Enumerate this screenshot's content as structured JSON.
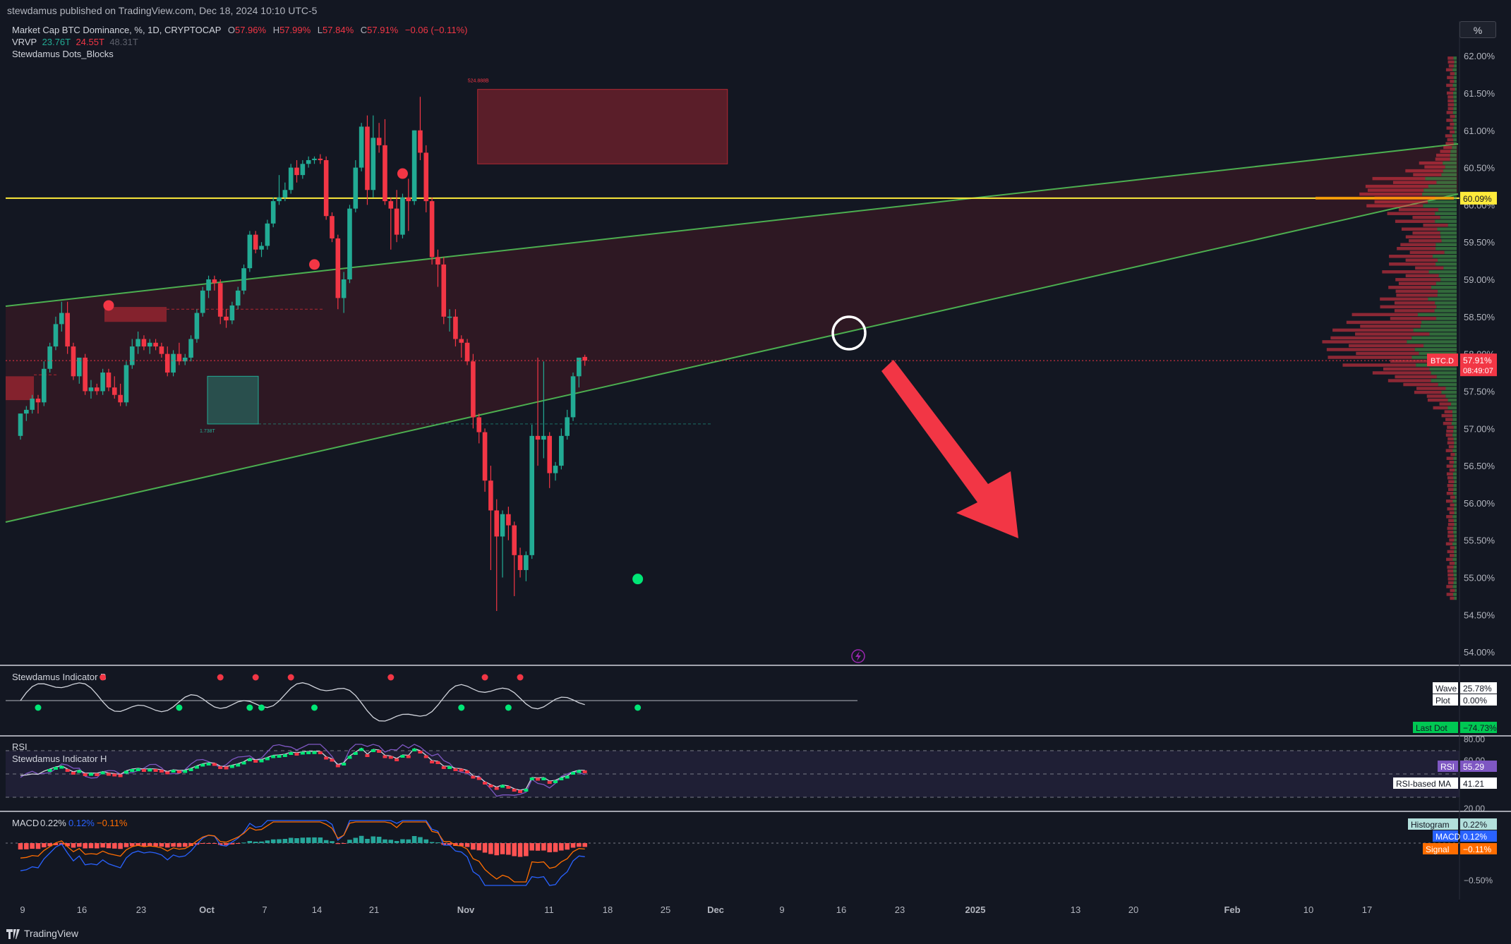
{
  "header": {
    "publisher": "stewdamus published on TradingView.com, Dec 18, 2024 10:10 UTC-5"
  },
  "legend": {
    "symbol_title": "Market Cap BTC Dominance, %, 1D, CRYPTOCAP",
    "o_label": "O",
    "o_value": "57.96%",
    "h_label": "H",
    "h_value": "57.99%",
    "l_label": "L",
    "l_value": "57.84%",
    "c_label": "C",
    "c_value": "57.91%",
    "change": "−0.06 (−0.11%)",
    "vrvp_label": "VRVP",
    "vrvp_v1": "23.76T",
    "vrvp_v2": "24.55T",
    "vrvp_v3": "48.31T",
    "indicator_name": "Stewdamus Dots_Blocks"
  },
  "toolbar": {
    "percent_button": "%"
  },
  "colors": {
    "up": "#22ab94",
    "down": "#f23645",
    "yellow": "#ffeb3b",
    "green_line": "#4caf50",
    "background": "#131722",
    "grid": "#2a2e39",
    "text": "#d1d4dc"
  },
  "icons": [
    "flash-icon",
    "tradingview-logo-icon"
  ],
  "chart_data": [
    {
      "type": "candlestick",
      "title": "Market Cap BTC Dominance, %, 1D, CRYPTOCAP",
      "y_unit": "%",
      "ylim": [
        53.85,
        62.2
      ],
      "y_ticks": [
        "62.00%",
        "61.50%",
        "61.00%",
        "60.50%",
        "60.00%",
        "59.50%",
        "59.00%",
        "58.50%",
        "58.00%",
        "57.50%",
        "57.00%",
        "56.50%",
        "56.00%",
        "55.50%",
        "55.00%",
        "54.50%",
        "54.00%"
      ],
      "x_ticks": [
        "9",
        "16",
        "23",
        "Oct",
        "7",
        "14",
        "21",
        "Nov",
        "11",
        "18",
        "25",
        "Dec",
        "9",
        "16",
        "23",
        "2025",
        "13",
        "20",
        "Feb",
        "10",
        "17"
      ],
      "candles": [
        {
          "o": 56.9,
          "h": 57.2,
          "l": 56.85,
          "c": 57.2
        },
        {
          "o": 57.2,
          "h": 57.3,
          "l": 57.1,
          "c": 57.25
        },
        {
          "o": 57.25,
          "h": 57.45,
          "l": 57.2,
          "c": 57.4
        },
        {
          "o": 57.4,
          "h": 57.45,
          "l": 57.2,
          "c": 57.35
        },
        {
          "o": 57.35,
          "h": 57.9,
          "l": 57.3,
          "c": 57.8
        },
        {
          "o": 57.8,
          "h": 58.15,
          "l": 57.75,
          "c": 58.1
        },
        {
          "o": 58.1,
          "h": 58.5,
          "l": 58.05,
          "c": 58.4
        },
        {
          "o": 58.4,
          "h": 58.7,
          "l": 58.3,
          "c": 58.55
        },
        {
          "o": 58.55,
          "h": 58.7,
          "l": 58.0,
          "c": 58.1
        },
        {
          "o": 58.1,
          "h": 58.15,
          "l": 57.65,
          "c": 57.7
        },
        {
          "o": 57.7,
          "h": 57.95,
          "l": 57.6,
          "c": 57.95
        },
        {
          "o": 57.95,
          "h": 58.0,
          "l": 57.45,
          "c": 57.5
        },
        {
          "o": 57.5,
          "h": 57.65,
          "l": 57.4,
          "c": 57.55
        },
        {
          "o": 57.55,
          "h": 57.6,
          "l": 57.45,
          "c": 57.5
        },
        {
          "o": 57.5,
          "h": 57.8,
          "l": 57.45,
          "c": 57.75
        },
        {
          "o": 57.75,
          "h": 57.8,
          "l": 57.5,
          "c": 57.55
        },
        {
          "o": 57.55,
          "h": 57.7,
          "l": 57.4,
          "c": 57.45
        },
        {
          "o": 57.45,
          "h": 57.6,
          "l": 57.3,
          "c": 57.35
        },
        {
          "o": 57.35,
          "h": 57.9,
          "l": 57.3,
          "c": 57.85
        },
        {
          "o": 57.85,
          "h": 58.2,
          "l": 57.8,
          "c": 58.1
        },
        {
          "o": 58.1,
          "h": 58.3,
          "l": 58.0,
          "c": 58.2
        },
        {
          "o": 58.2,
          "h": 58.25,
          "l": 58.05,
          "c": 58.1
        },
        {
          "o": 58.1,
          "h": 58.2,
          "l": 58.0,
          "c": 58.15
        },
        {
          "o": 58.15,
          "h": 58.2,
          "l": 58.05,
          "c": 58.1
        },
        {
          "o": 58.1,
          "h": 58.15,
          "l": 57.95,
          "c": 58.0
        },
        {
          "o": 58.0,
          "h": 58.1,
          "l": 57.7,
          "c": 57.75
        },
        {
          "o": 57.75,
          "h": 58.05,
          "l": 57.7,
          "c": 58.0
        },
        {
          "o": 58.0,
          "h": 58.15,
          "l": 57.85,
          "c": 57.9
        },
        {
          "o": 57.9,
          "h": 58.0,
          "l": 57.85,
          "c": 57.95
        },
        {
          "o": 57.95,
          "h": 58.25,
          "l": 57.9,
          "c": 58.2
        },
        {
          "o": 58.2,
          "h": 58.6,
          "l": 58.15,
          "c": 58.55
        },
        {
          "o": 58.55,
          "h": 58.9,
          "l": 58.5,
          "c": 58.85
        },
        {
          "o": 58.85,
          "h": 59.05,
          "l": 58.75,
          "c": 59.0
        },
        {
          "o": 59.0,
          "h": 59.05,
          "l": 58.85,
          "c": 58.95
        },
        {
          "o": 58.95,
          "h": 59.0,
          "l": 58.4,
          "c": 58.5
        },
        {
          "o": 58.5,
          "h": 58.6,
          "l": 58.35,
          "c": 58.45
        },
        {
          "o": 58.45,
          "h": 58.7,
          "l": 58.4,
          "c": 58.65
        },
        {
          "o": 58.65,
          "h": 58.9,
          "l": 58.6,
          "c": 58.85
        },
        {
          "o": 58.85,
          "h": 59.2,
          "l": 58.8,
          "c": 59.15
        },
        {
          "o": 59.15,
          "h": 59.65,
          "l": 59.1,
          "c": 59.6
        },
        {
          "o": 59.6,
          "h": 59.65,
          "l": 59.35,
          "c": 59.4
        },
        {
          "o": 59.4,
          "h": 59.5,
          "l": 59.3,
          "c": 59.45
        },
        {
          "o": 59.45,
          "h": 59.8,
          "l": 59.4,
          "c": 59.75
        },
        {
          "o": 59.75,
          "h": 60.1,
          "l": 59.7,
          "c": 60.05
        },
        {
          "o": 60.05,
          "h": 60.4,
          "l": 60.0,
          "c": 60.1
        },
        {
          "o": 60.1,
          "h": 60.3,
          "l": 60.05,
          "c": 60.2
        },
        {
          "o": 60.2,
          "h": 60.55,
          "l": 60.15,
          "c": 60.5
        },
        {
          "o": 60.5,
          "h": 60.6,
          "l": 60.3,
          "c": 60.4
        },
        {
          "o": 60.4,
          "h": 60.6,
          "l": 60.35,
          "c": 60.55
        },
        {
          "o": 60.55,
          "h": 60.65,
          "l": 60.5,
          "c": 60.6
        },
        {
          "o": 60.6,
          "h": 60.65,
          "l": 60.55,
          "c": 60.62
        },
        {
          "o": 60.62,
          "h": 60.68,
          "l": 60.55,
          "c": 60.6
        },
        {
          "o": 60.6,
          "h": 60.65,
          "l": 59.8,
          "c": 59.85
        },
        {
          "o": 59.85,
          "h": 59.9,
          "l": 59.5,
          "c": 59.55
        },
        {
          "o": 59.55,
          "h": 59.6,
          "l": 58.6,
          "c": 58.75
        },
        {
          "o": 58.75,
          "h": 59.1,
          "l": 58.55,
          "c": 59.0
        },
        {
          "o": 59.0,
          "h": 60.0,
          "l": 58.95,
          "c": 59.95
        },
        {
          "o": 59.95,
          "h": 60.6,
          "l": 59.9,
          "c": 60.5
        },
        {
          "o": 60.5,
          "h": 61.1,
          "l": 60.45,
          "c": 61.05
        },
        {
          "o": 61.05,
          "h": 61.2,
          "l": 60.0,
          "c": 60.2
        },
        {
          "o": 60.2,
          "h": 61.2,
          "l": 60.1,
          "c": 60.9
        },
        {
          "o": 60.9,
          "h": 61.1,
          "l": 60.7,
          "c": 60.8
        },
        {
          "o": 60.8,
          "h": 61.15,
          "l": 60.0,
          "c": 60.05
        },
        {
          "o": 60.05,
          "h": 60.1,
          "l": 59.4,
          "c": 59.95
        },
        {
          "o": 59.95,
          "h": 60.2,
          "l": 59.5,
          "c": 59.6
        },
        {
          "o": 59.6,
          "h": 60.15,
          "l": 59.55,
          "c": 60.1
        },
        {
          "o": 60.1,
          "h": 60.35,
          "l": 59.65,
          "c": 60.05
        },
        {
          "o": 60.05,
          "h": 61.0,
          "l": 60.0,
          "c": 61.0
        },
        {
          "o": 61.0,
          "h": 61.45,
          "l": 60.6,
          "c": 60.7
        },
        {
          "o": 60.7,
          "h": 60.8,
          "l": 59.9,
          "c": 60.05
        },
        {
          "o": 60.05,
          "h": 60.1,
          "l": 59.2,
          "c": 59.3
        },
        {
          "o": 59.3,
          "h": 59.4,
          "l": 58.9,
          "c": 59.2
        },
        {
          "o": 59.2,
          "h": 59.3,
          "l": 58.4,
          "c": 58.5
        },
        {
          "o": 58.5,
          "h": 58.6,
          "l": 58.3,
          "c": 58.5
        },
        {
          "o": 58.5,
          "h": 58.6,
          "l": 58.1,
          "c": 58.2
        },
        {
          "o": 58.2,
          "h": 58.25,
          "l": 57.95,
          "c": 58.15
        },
        {
          "o": 58.15,
          "h": 58.2,
          "l": 57.85,
          "c": 57.9
        },
        {
          "o": 57.9,
          "h": 58.0,
          "l": 57.0,
          "c": 57.15
        },
        {
          "o": 57.15,
          "h": 57.2,
          "l": 56.8,
          "c": 56.95
        },
        {
          "o": 56.95,
          "h": 57.0,
          "l": 56.15,
          "c": 56.3
        },
        {
          "o": 56.3,
          "h": 56.5,
          "l": 55.1,
          "c": 55.9
        },
        {
          "o": 55.9,
          "h": 56.05,
          "l": 54.55,
          "c": 55.55
        },
        {
          "o": 55.55,
          "h": 55.9,
          "l": 55.0,
          "c": 55.85
        },
        {
          "o": 55.85,
          "h": 55.95,
          "l": 55.5,
          "c": 55.7
        },
        {
          "o": 55.7,
          "h": 55.75,
          "l": 54.75,
          "c": 55.3
        },
        {
          "o": 55.3,
          "h": 55.4,
          "l": 55.0,
          "c": 55.1
        },
        {
          "o": 55.1,
          "h": 55.35,
          "l": 54.95,
          "c": 55.3
        },
        {
          "o": 55.3,
          "h": 57.05,
          "l": 55.25,
          "c": 56.9
        },
        {
          "o": 56.9,
          "h": 57.95,
          "l": 56.5,
          "c": 56.85
        },
        {
          "o": 56.85,
          "h": 57.9,
          "l": 56.6,
          "c": 56.9
        },
        {
          "o": 56.9,
          "h": 56.95,
          "l": 56.2,
          "c": 56.4
        },
        {
          "o": 56.4,
          "h": 56.55,
          "l": 56.3,
          "c": 56.5
        },
        {
          "o": 56.5,
          "h": 57.0,
          "l": 56.45,
          "c": 56.9
        },
        {
          "o": 56.9,
          "h": 57.25,
          "l": 56.85,
          "c": 57.15
        },
        {
          "o": 57.15,
          "h": 57.75,
          "l": 57.1,
          "c": 57.7
        },
        {
          "o": 57.7,
          "h": 57.95,
          "l": 57.55,
          "c": 57.95
        },
        {
          "o": 57.96,
          "h": 57.99,
          "l": 57.84,
          "c": 57.91
        }
      ],
      "last_price": "57.91%",
      "price_tag_symbol": "BTC.D",
      "countdown": "08:49:07",
      "yellow_level": 60.09,
      "yellow_level_label": "60.09%",
      "zone_top_label": "524.888B",
      "zone_bottom_label": "1.738T",
      "red_dots": [
        {
          "i": 15,
          "v": 58.65
        },
        {
          "i": 50,
          "v": 59.2
        },
        {
          "i": 65,
          "v": 60.42
        }
      ],
      "green_dots": [
        {
          "i": 105,
          "v": 54.98
        }
      ]
    },
    {
      "type": "line",
      "name": "Stewdamus Indicator B",
      "labels": [
        {
          "label": "Wave",
          "value": "25.78%"
        },
        {
          "label": "Plot",
          "value": "0.00%"
        },
        {
          "label": "Last Dot",
          "value": "−74.73%"
        }
      ]
    },
    {
      "type": "line",
      "name": "RSI",
      "second_name": "Stewdamus Indicator H",
      "y_ticks": [
        "80.00",
        "60.00",
        "20.00"
      ],
      "labels": [
        {
          "label": "RSI",
          "value": "55.29"
        },
        {
          "label": "RSI-based MA",
          "value": "41.21"
        }
      ]
    },
    {
      "type": "bar",
      "name": "MACD",
      "legend_values": [
        "0.22%",
        "0.12%",
        "−0.11%"
      ],
      "y_ticks": [
        "−0.50%"
      ],
      "labels": [
        {
          "label": "Histogram",
          "value": "0.22%"
        },
        {
          "label": "MACD",
          "value": "0.12%"
        },
        {
          "label": "Signal",
          "value": "−0.11%"
        }
      ]
    }
  ],
  "footer": {
    "brand": "TradingView"
  }
}
